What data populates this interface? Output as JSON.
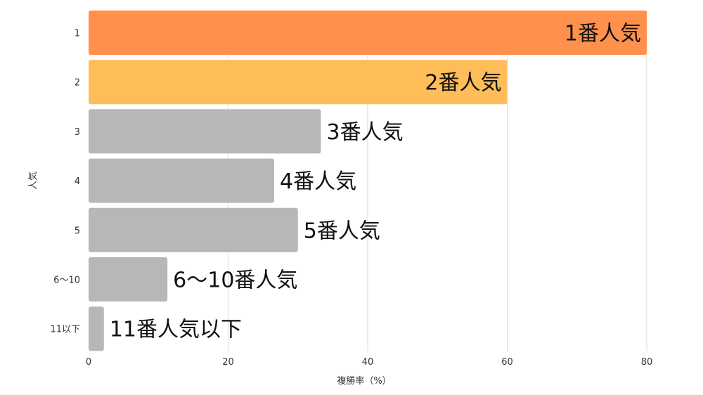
{
  "chart_data": {
    "type": "bar",
    "orientation": "horizontal",
    "categories": [
      "1",
      "2",
      "3",
      "4",
      "5",
      "6〜10",
      "11以下"
    ],
    "values": [
      80,
      60,
      33.3,
      26.6,
      30,
      11.3,
      2.2
    ],
    "data_labels": [
      "1番人気",
      "2番人気",
      "3番人気",
      "4番人気",
      "5番人気",
      "6〜10番人気",
      "11番人気以下"
    ],
    "colors": [
      "#ff914d",
      "#ffbd59",
      "#b7b7b7",
      "#b7b7b7",
      "#b7b7b7",
      "#b7b7b7",
      "#b7b7b7"
    ],
    "xlabel": "複勝率（%）",
    "ylabel": "人気",
    "xlim": [
      0,
      80
    ],
    "xticks": [
      0,
      20,
      40,
      60,
      80
    ],
    "grid": "vertical"
  }
}
